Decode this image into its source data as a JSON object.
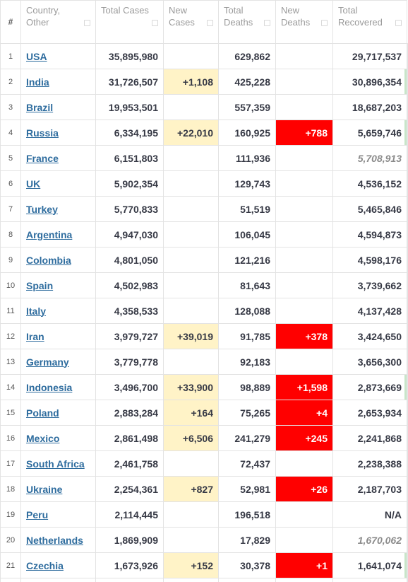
{
  "headers": {
    "rank": "#",
    "country": "Country, Other",
    "total_cases": "Total Cases",
    "new_cases": "New Cases",
    "total_deaths": "Total Deaths",
    "new_deaths": "New Deaths",
    "total_recovered": "Total Recovered"
  },
  "colors": {
    "link": "#2e6c9e",
    "new_cases_highlight": "#fff3c7",
    "new_deaths_highlight": "#ff0000",
    "estimated_text": "#8b8b8b"
  },
  "rows": [
    {
      "rank": "1",
      "country": "USA",
      "total_cases": "35,895,980",
      "new_cases": "",
      "total_deaths": "629,862",
      "new_deaths": "",
      "total_recovered": "29,717,537",
      "recovered_estimated": false
    },
    {
      "rank": "2",
      "country": "India",
      "total_cases": "31,726,507",
      "new_cases": "+1,108",
      "total_deaths": "425,228",
      "new_deaths": "",
      "total_recovered": "30,896,354",
      "recovered_estimated": false
    },
    {
      "rank": "3",
      "country": "Brazil",
      "total_cases": "19,953,501",
      "new_cases": "",
      "total_deaths": "557,359",
      "new_deaths": "",
      "total_recovered": "18,687,203",
      "recovered_estimated": false
    },
    {
      "rank": "4",
      "country": "Russia",
      "total_cases": "6,334,195",
      "new_cases": "+22,010",
      "total_deaths": "160,925",
      "new_deaths": "+788",
      "total_recovered": "5,659,746",
      "recovered_estimated": false
    },
    {
      "rank": "5",
      "country": "France",
      "total_cases": "6,151,803",
      "new_cases": "",
      "total_deaths": "111,936",
      "new_deaths": "",
      "total_recovered": "5,708,913",
      "recovered_estimated": true
    },
    {
      "rank": "6",
      "country": "UK",
      "total_cases": "5,902,354",
      "new_cases": "",
      "total_deaths": "129,743",
      "new_deaths": "",
      "total_recovered": "4,536,152",
      "recovered_estimated": false
    },
    {
      "rank": "7",
      "country": "Turkey",
      "total_cases": "5,770,833",
      "new_cases": "",
      "total_deaths": "51,519",
      "new_deaths": "",
      "total_recovered": "5,465,846",
      "recovered_estimated": false
    },
    {
      "rank": "8",
      "country": "Argentina",
      "total_cases": "4,947,030",
      "new_cases": "",
      "total_deaths": "106,045",
      "new_deaths": "",
      "total_recovered": "4,594,873",
      "recovered_estimated": false
    },
    {
      "rank": "9",
      "country": "Colombia",
      "total_cases": "4,801,050",
      "new_cases": "",
      "total_deaths": "121,216",
      "new_deaths": "",
      "total_recovered": "4,598,176",
      "recovered_estimated": false
    },
    {
      "rank": "10",
      "country": "Spain",
      "total_cases": "4,502,983",
      "new_cases": "",
      "total_deaths": "81,643",
      "new_deaths": "",
      "total_recovered": "3,739,662",
      "recovered_estimated": false
    },
    {
      "rank": "11",
      "country": "Italy",
      "total_cases": "4,358,533",
      "new_cases": "",
      "total_deaths": "128,088",
      "new_deaths": "",
      "total_recovered": "4,137,428",
      "recovered_estimated": false
    },
    {
      "rank": "12",
      "country": "Iran",
      "total_cases": "3,979,727",
      "new_cases": "+39,019",
      "total_deaths": "91,785",
      "new_deaths": "+378",
      "total_recovered": "3,424,650",
      "recovered_estimated": false
    },
    {
      "rank": "13",
      "country": "Germany",
      "total_cases": "3,779,778",
      "new_cases": "",
      "total_deaths": "92,183",
      "new_deaths": "",
      "total_recovered": "3,656,300",
      "recovered_estimated": false
    },
    {
      "rank": "14",
      "country": "Indonesia",
      "total_cases": "3,496,700",
      "new_cases": "+33,900",
      "total_deaths": "98,889",
      "new_deaths": "+1,598",
      "total_recovered": "2,873,669",
      "recovered_estimated": false
    },
    {
      "rank": "15",
      "country": "Poland",
      "total_cases": "2,883,284",
      "new_cases": "+164",
      "total_deaths": "75,265",
      "new_deaths": "+4",
      "total_recovered": "2,653,934",
      "recovered_estimated": false
    },
    {
      "rank": "16",
      "country": "Mexico",
      "total_cases": "2,861,498",
      "new_cases": "+6,506",
      "total_deaths": "241,279",
      "new_deaths": "+245",
      "total_recovered": "2,241,868",
      "recovered_estimated": false
    },
    {
      "rank": "17",
      "country": "South Africa",
      "total_cases": "2,461,758",
      "new_cases": "",
      "total_deaths": "72,437",
      "new_deaths": "",
      "total_recovered": "2,238,388",
      "recovered_estimated": false
    },
    {
      "rank": "18",
      "country": "Ukraine",
      "total_cases": "2,254,361",
      "new_cases": "+827",
      "total_deaths": "52,981",
      "new_deaths": "+26",
      "total_recovered": "2,187,703",
      "recovered_estimated": false
    },
    {
      "rank": "19",
      "country": "Peru",
      "total_cases": "2,114,445",
      "new_cases": "",
      "total_deaths": "196,518",
      "new_deaths": "",
      "total_recovered": "N/A",
      "recovered_estimated": false
    },
    {
      "rank": "20",
      "country": "Netherlands",
      "total_cases": "1,869,909",
      "new_cases": "",
      "total_deaths": "17,829",
      "new_deaths": "",
      "total_recovered": "1,670,062",
      "recovered_estimated": true
    },
    {
      "rank": "21",
      "country": "Czechia",
      "total_cases": "1,673,926",
      "new_cases": "+152",
      "total_deaths": "30,378",
      "new_deaths": "+1",
      "total_recovered": "1,641,074",
      "recovered_estimated": false
    }
  ]
}
